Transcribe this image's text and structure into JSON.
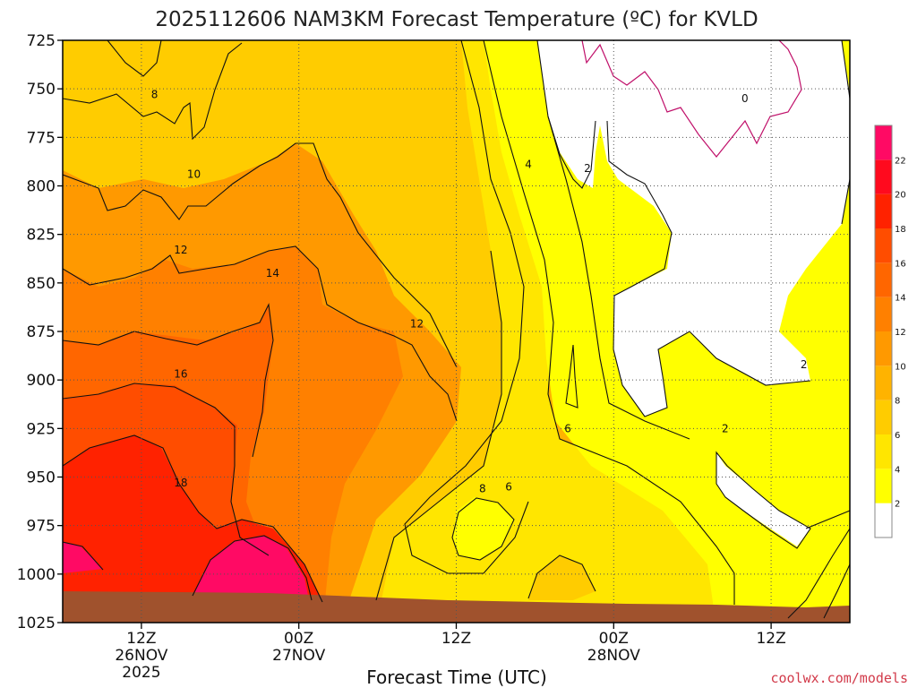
{
  "chart_data": {
    "type": "heatmap",
    "title": "2025112606 NAM3KM Forecast Temperature (ºC) for KVLD",
    "xlabel": "Forecast Time (UTC)",
    "ylabel": "",
    "credit": "coolwx.com/models",
    "y_axis": {
      "ticks": [
        725,
        750,
        775,
        800,
        825,
        850,
        875,
        900,
        925,
        950,
        975,
        1000,
        1025
      ],
      "ylim": [
        725,
        1025
      ],
      "inverted": true
    },
    "x_axis": {
      "ticks": [
        {
          "hour": 6,
          "line1": "12Z",
          "line2": "26NOV",
          "line3": "2025"
        },
        {
          "hour": 18,
          "line1": "00Z",
          "line2": "27NOV",
          "line3": ""
        },
        {
          "hour": 30,
          "line1": "12Z",
          "line2": "",
          "line3": ""
        },
        {
          "hour": 42,
          "line1": "00Z",
          "line2": "28NOV",
          "line3": ""
        },
        {
          "hour": 54,
          "line1": "12Z",
          "line2": "",
          "line3": ""
        }
      ],
      "xlim": [
        0,
        60
      ]
    },
    "colorbar": {
      "levels": [
        2,
        4,
        6,
        8,
        10,
        12,
        14,
        16,
        18,
        20,
        22
      ],
      "colors": [
        "#ffffff",
        "#ffff00",
        "#ffe600",
        "#ffcc00",
        "#ffb300",
        "#ff9900",
        "#ff8000",
        "#ff6600",
        "#ff4d00",
        "#ff2200",
        "#ff0a1e",
        "#ff0a64"
      ]
    },
    "contour_labels": [
      {
        "text": "8",
        "hour": 7,
        "p": 753
      },
      {
        "text": "10",
        "hour": 10,
        "p": 794
      },
      {
        "text": "12",
        "hour": 9,
        "p": 833
      },
      {
        "text": "14",
        "hour": 16,
        "p": 845
      },
      {
        "text": "12",
        "hour": 27,
        "p": 871
      },
      {
        "text": "16",
        "hour": 9,
        "p": 897
      },
      {
        "text": "18",
        "hour": 9,
        "p": 953
      },
      {
        "text": "8",
        "hour": 32,
        "p": 956
      },
      {
        "text": "6",
        "hour": 34,
        "p": 955
      },
      {
        "text": "6",
        "hour": 38.5,
        "p": 925
      },
      {
        "text": "4",
        "hour": 35.5,
        "p": 789
      },
      {
        "text": "2",
        "hour": 40,
        "p": 791
      },
      {
        "text": "0",
        "hour": 52,
        "p": 755
      },
      {
        "text": "2",
        "hour": 56.5,
        "p": 892
      },
      {
        "text": "2",
        "hour": 50.5,
        "p": 925
      }
    ]
  }
}
